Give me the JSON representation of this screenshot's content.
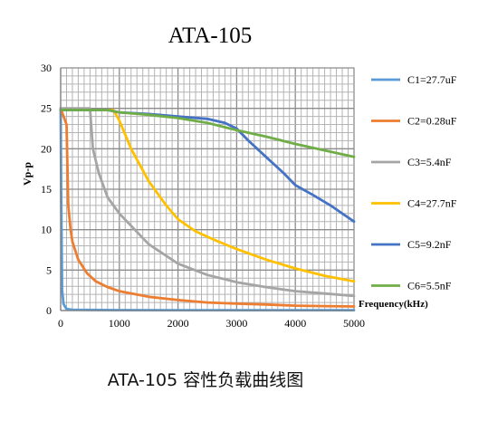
{
  "chart_data": {
    "type": "line",
    "title": "ATA-105",
    "xlabel": "Frequency(kHz)",
    "ylabel": "Vp-p",
    "xlim": [
      0,
      5000
    ],
    "ylim": [
      0,
      30
    ],
    "x_ticks": [
      "0",
      "1000",
      "2000",
      "3000",
      "4000",
      "5000"
    ],
    "y_ticks": [
      "0",
      "5",
      "10",
      "15",
      "20",
      "25",
      "30"
    ],
    "grid": true,
    "legend_position": "right",
    "series": [
      {
        "name": "C1=27.7uF",
        "color": "#5B9BD5",
        "x": [
          0,
          10,
          25,
          50,
          100,
          200,
          500,
          1000,
          2000,
          3000,
          4000,
          5000
        ],
        "y": [
          25,
          14,
          2.5,
          0.8,
          0.2,
          0.1,
          0.08,
          0.06,
          0.05,
          0.05,
          0.04,
          0.04
        ]
      },
      {
        "name": "C2=0.28uF",
        "color": "#ED7D31",
        "x": [
          0,
          100,
          130,
          170,
          200,
          300,
          450,
          600,
          800,
          1000,
          1500,
          2000,
          2500,
          3000,
          3500,
          4000,
          4500,
          5000
        ],
        "y": [
          25,
          23,
          13,
          10,
          8.5,
          6.3,
          4.6,
          3.6,
          2.9,
          2.4,
          1.7,
          1.3,
          1.0,
          0.85,
          0.75,
          0.6,
          0.55,
          0.5
        ]
      },
      {
        "name": "C3=5.4nF",
        "color": "#A5A5A5",
        "x": [
          0,
          500,
          550,
          650,
          800,
          1000,
          1500,
          2000,
          2500,
          3000,
          3500,
          4000,
          4500,
          5000
        ],
        "y": [
          25,
          25,
          20,
          17,
          14,
          12,
          8.2,
          5.8,
          4.4,
          3.5,
          2.9,
          2.4,
          2.1,
          1.8
        ]
      },
      {
        "name": "C4=27.7nF",
        "color": "#FFC000",
        "x": [
          0,
          900,
          1000,
          1200,
          1500,
          1800,
          2000,
          2300,
          2600,
          3000,
          3500,
          4000,
          4500,
          5000
        ],
        "y": [
          24.8,
          24.8,
          23.5,
          20,
          16,
          13,
          11.3,
          9.8,
          8.8,
          7.6,
          6.3,
          5.2,
          4.3,
          3.6
        ]
      },
      {
        "name": "C5=9.2nF",
        "color": "#4472C4",
        "x": [
          0,
          800,
          1000,
          1500,
          2000,
          2500,
          2800,
          3000,
          3200,
          3500,
          3800,
          4000,
          4300,
          4600,
          5000
        ],
        "y": [
          24.8,
          24.8,
          24.5,
          24.3,
          24.0,
          23.7,
          23.2,
          22.5,
          21.0,
          19.0,
          17.0,
          15.5,
          14.3,
          13.0,
          11.0
        ]
      },
      {
        "name": "C6=5.5nF",
        "color": "#70AD47",
        "x": [
          0,
          800,
          1000,
          1500,
          2000,
          2500,
          3000,
          3500,
          4000,
          4500,
          5000
        ],
        "y": [
          24.8,
          24.8,
          24.5,
          24.2,
          23.8,
          23.2,
          22.3,
          21.5,
          20.6,
          19.8,
          19.0
        ]
      }
    ]
  },
  "caption": "ATA-105 容性负载曲线图"
}
